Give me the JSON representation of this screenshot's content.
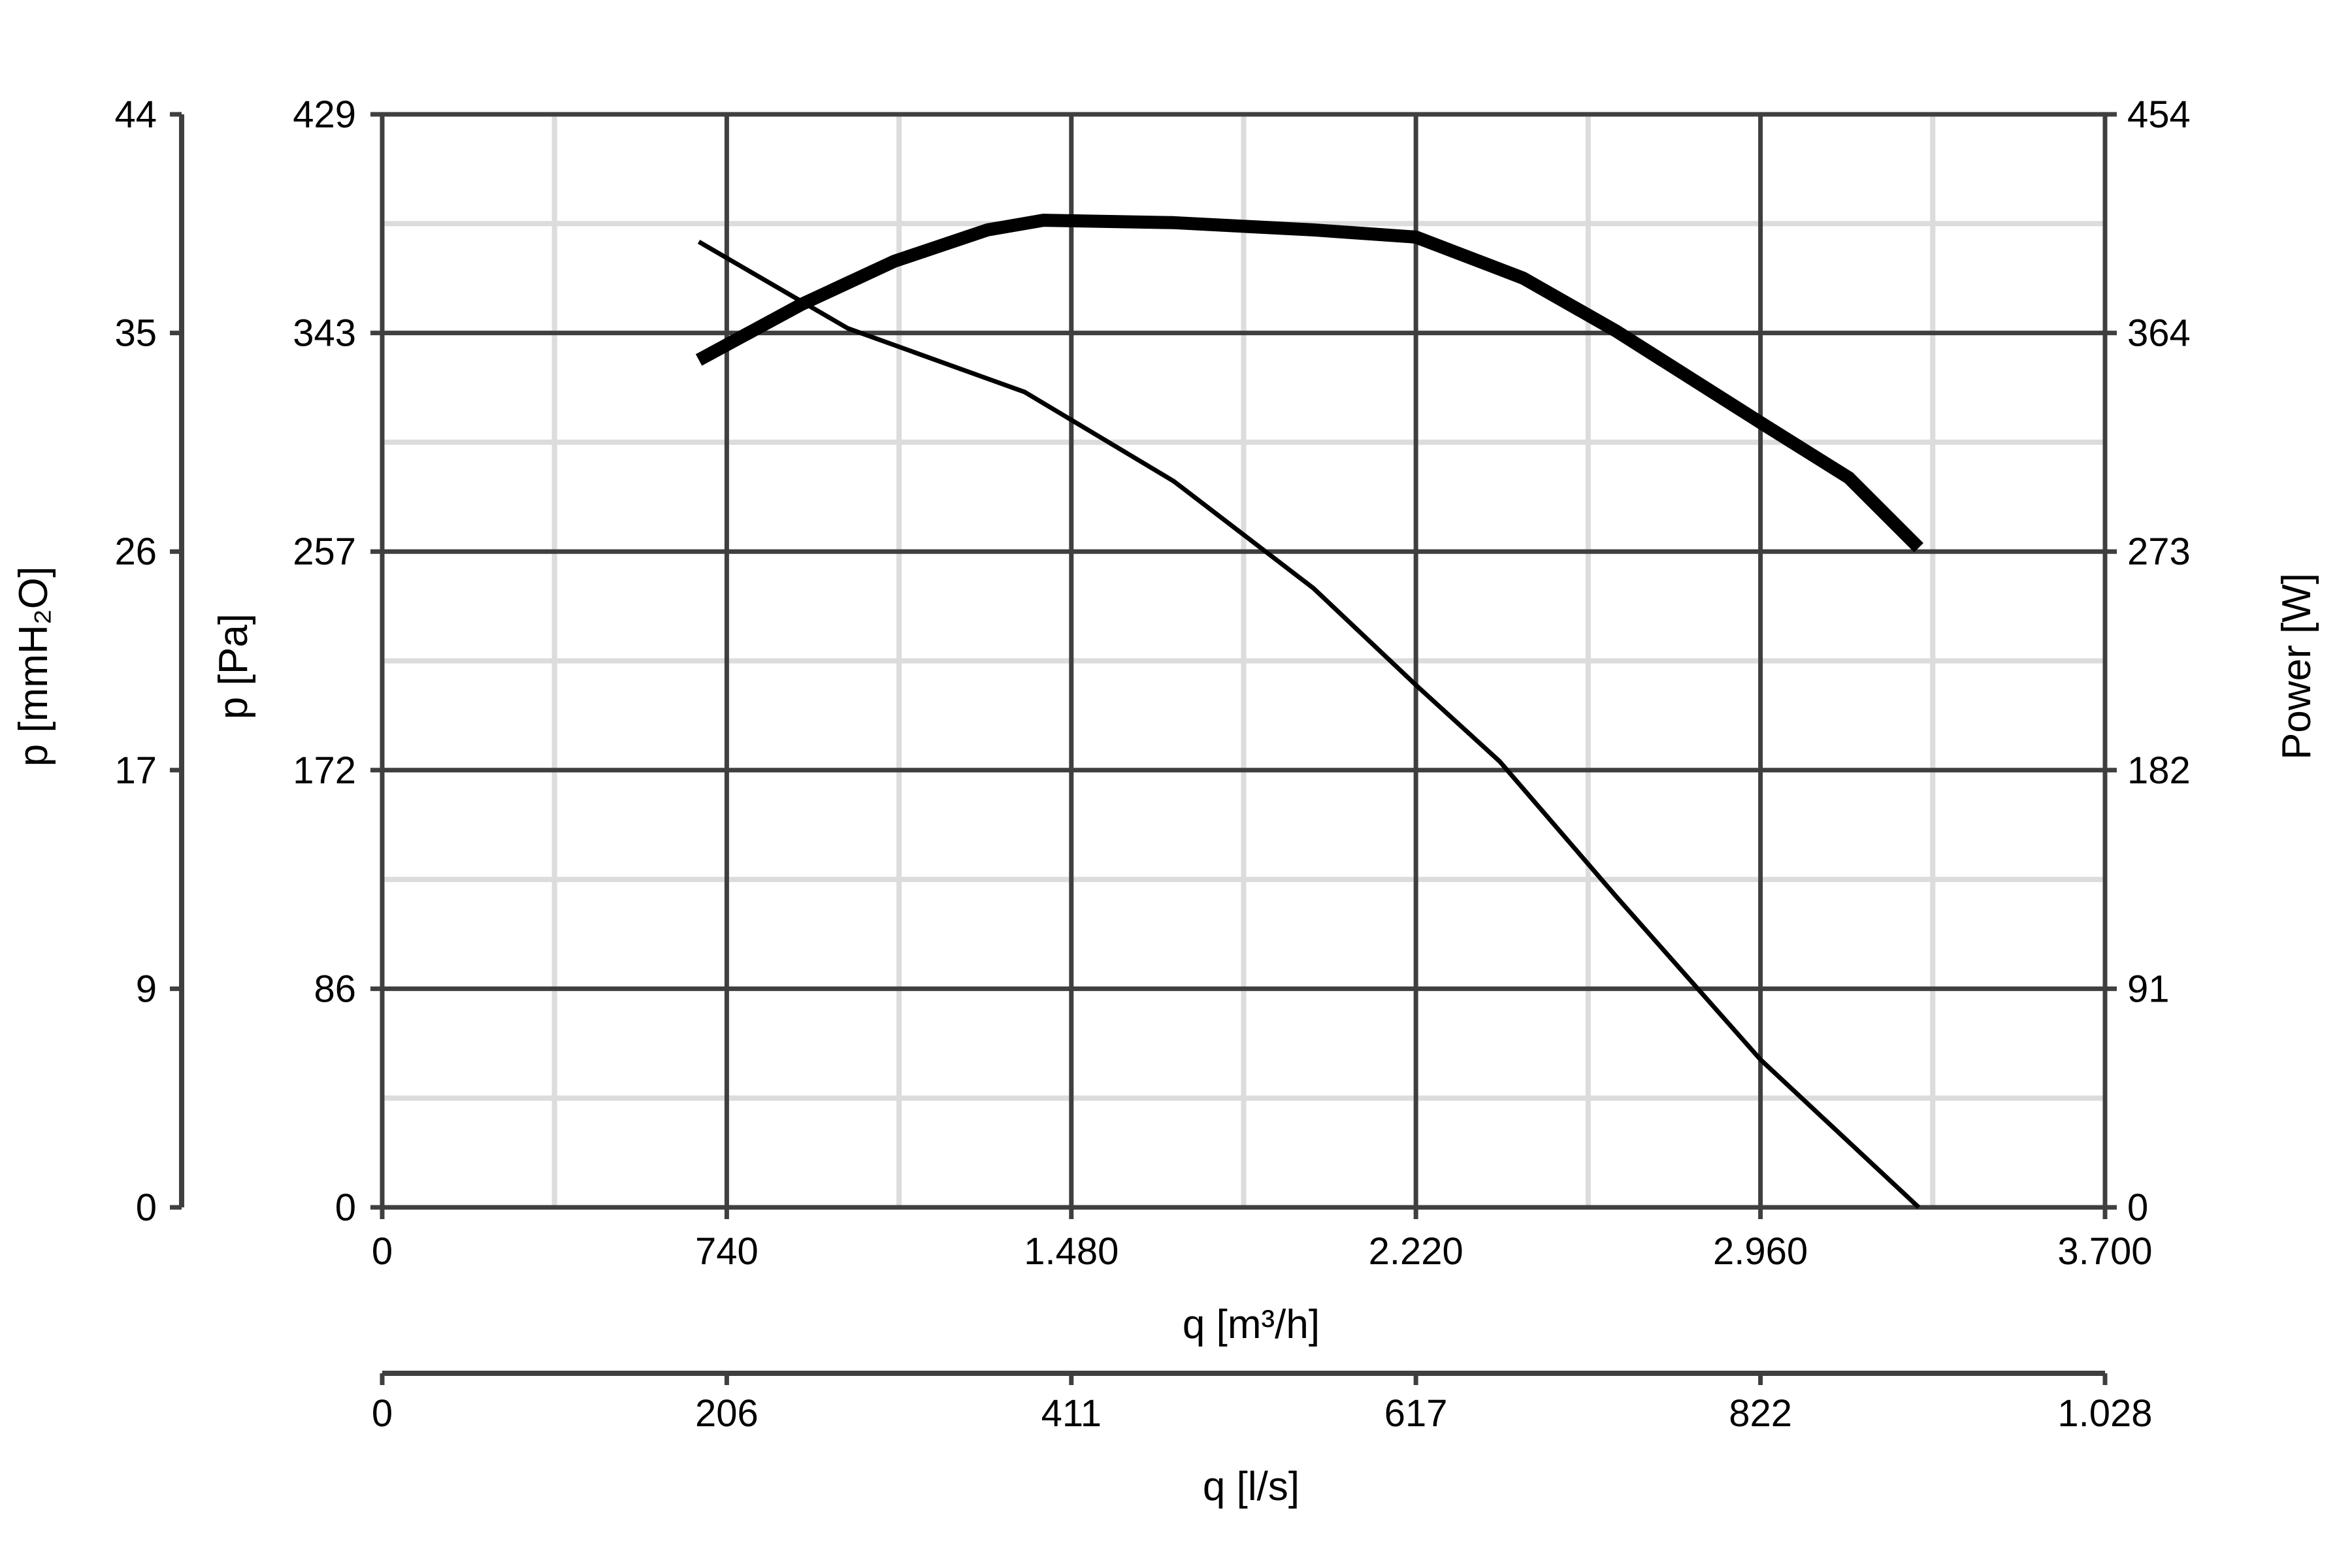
{
  "chart_data": {
    "type": "line",
    "title": "",
    "x_axis_primary": {
      "label": "q [m³/h]",
      "range": [
        0,
        3700
      ],
      "ticks": [
        "0",
        "740",
        "1.480",
        "2.220",
        "2.960",
        "3.700"
      ]
    },
    "x_axis_secondary": {
      "label": "q [l/s]",
      "ticks": [
        "0",
        "206",
        "411",
        "617",
        "822",
        "1.028"
      ]
    },
    "y_axis_left_inner": {
      "label": "p [Pa]",
      "range": [
        0,
        429
      ],
      "ticks": [
        "0",
        "86",
        "172",
        "257",
        "343",
        "429"
      ]
    },
    "y_axis_left_outer": {
      "label": "p [mmH₂O]",
      "ticks": [
        "0",
        "9",
        "17",
        "26",
        "35",
        "44"
      ]
    },
    "y_axis_right": {
      "label": "Power [W]",
      "range": [
        0,
        454
      ],
      "ticks": [
        "0",
        "91",
        "182",
        "273",
        "364",
        "454"
      ]
    },
    "grid": true,
    "series": [
      {
        "axis": "left",
        "style": "thin",
        "x": [
          680,
          1000,
          1380,
          1700,
          2000,
          2220,
          2400,
          2650,
          2960,
          3300
        ],
        "y": [
          379,
          345,
          320,
          285,
          243,
          205,
          175,
          122,
          58,
          0
        ]
      },
      {
        "axis": "right",
        "style": "thick",
        "x": [
          680,
          900,
          1100,
          1300,
          1420,
          1700,
          2000,
          2220,
          2450,
          2650,
          2960,
          3150,
          3300
        ],
        "y": [
          352,
          375,
          393,
          406,
          410,
          409,
          406,
          403,
          386,
          364,
          326,
          303,
          274
        ]
      }
    ]
  }
}
